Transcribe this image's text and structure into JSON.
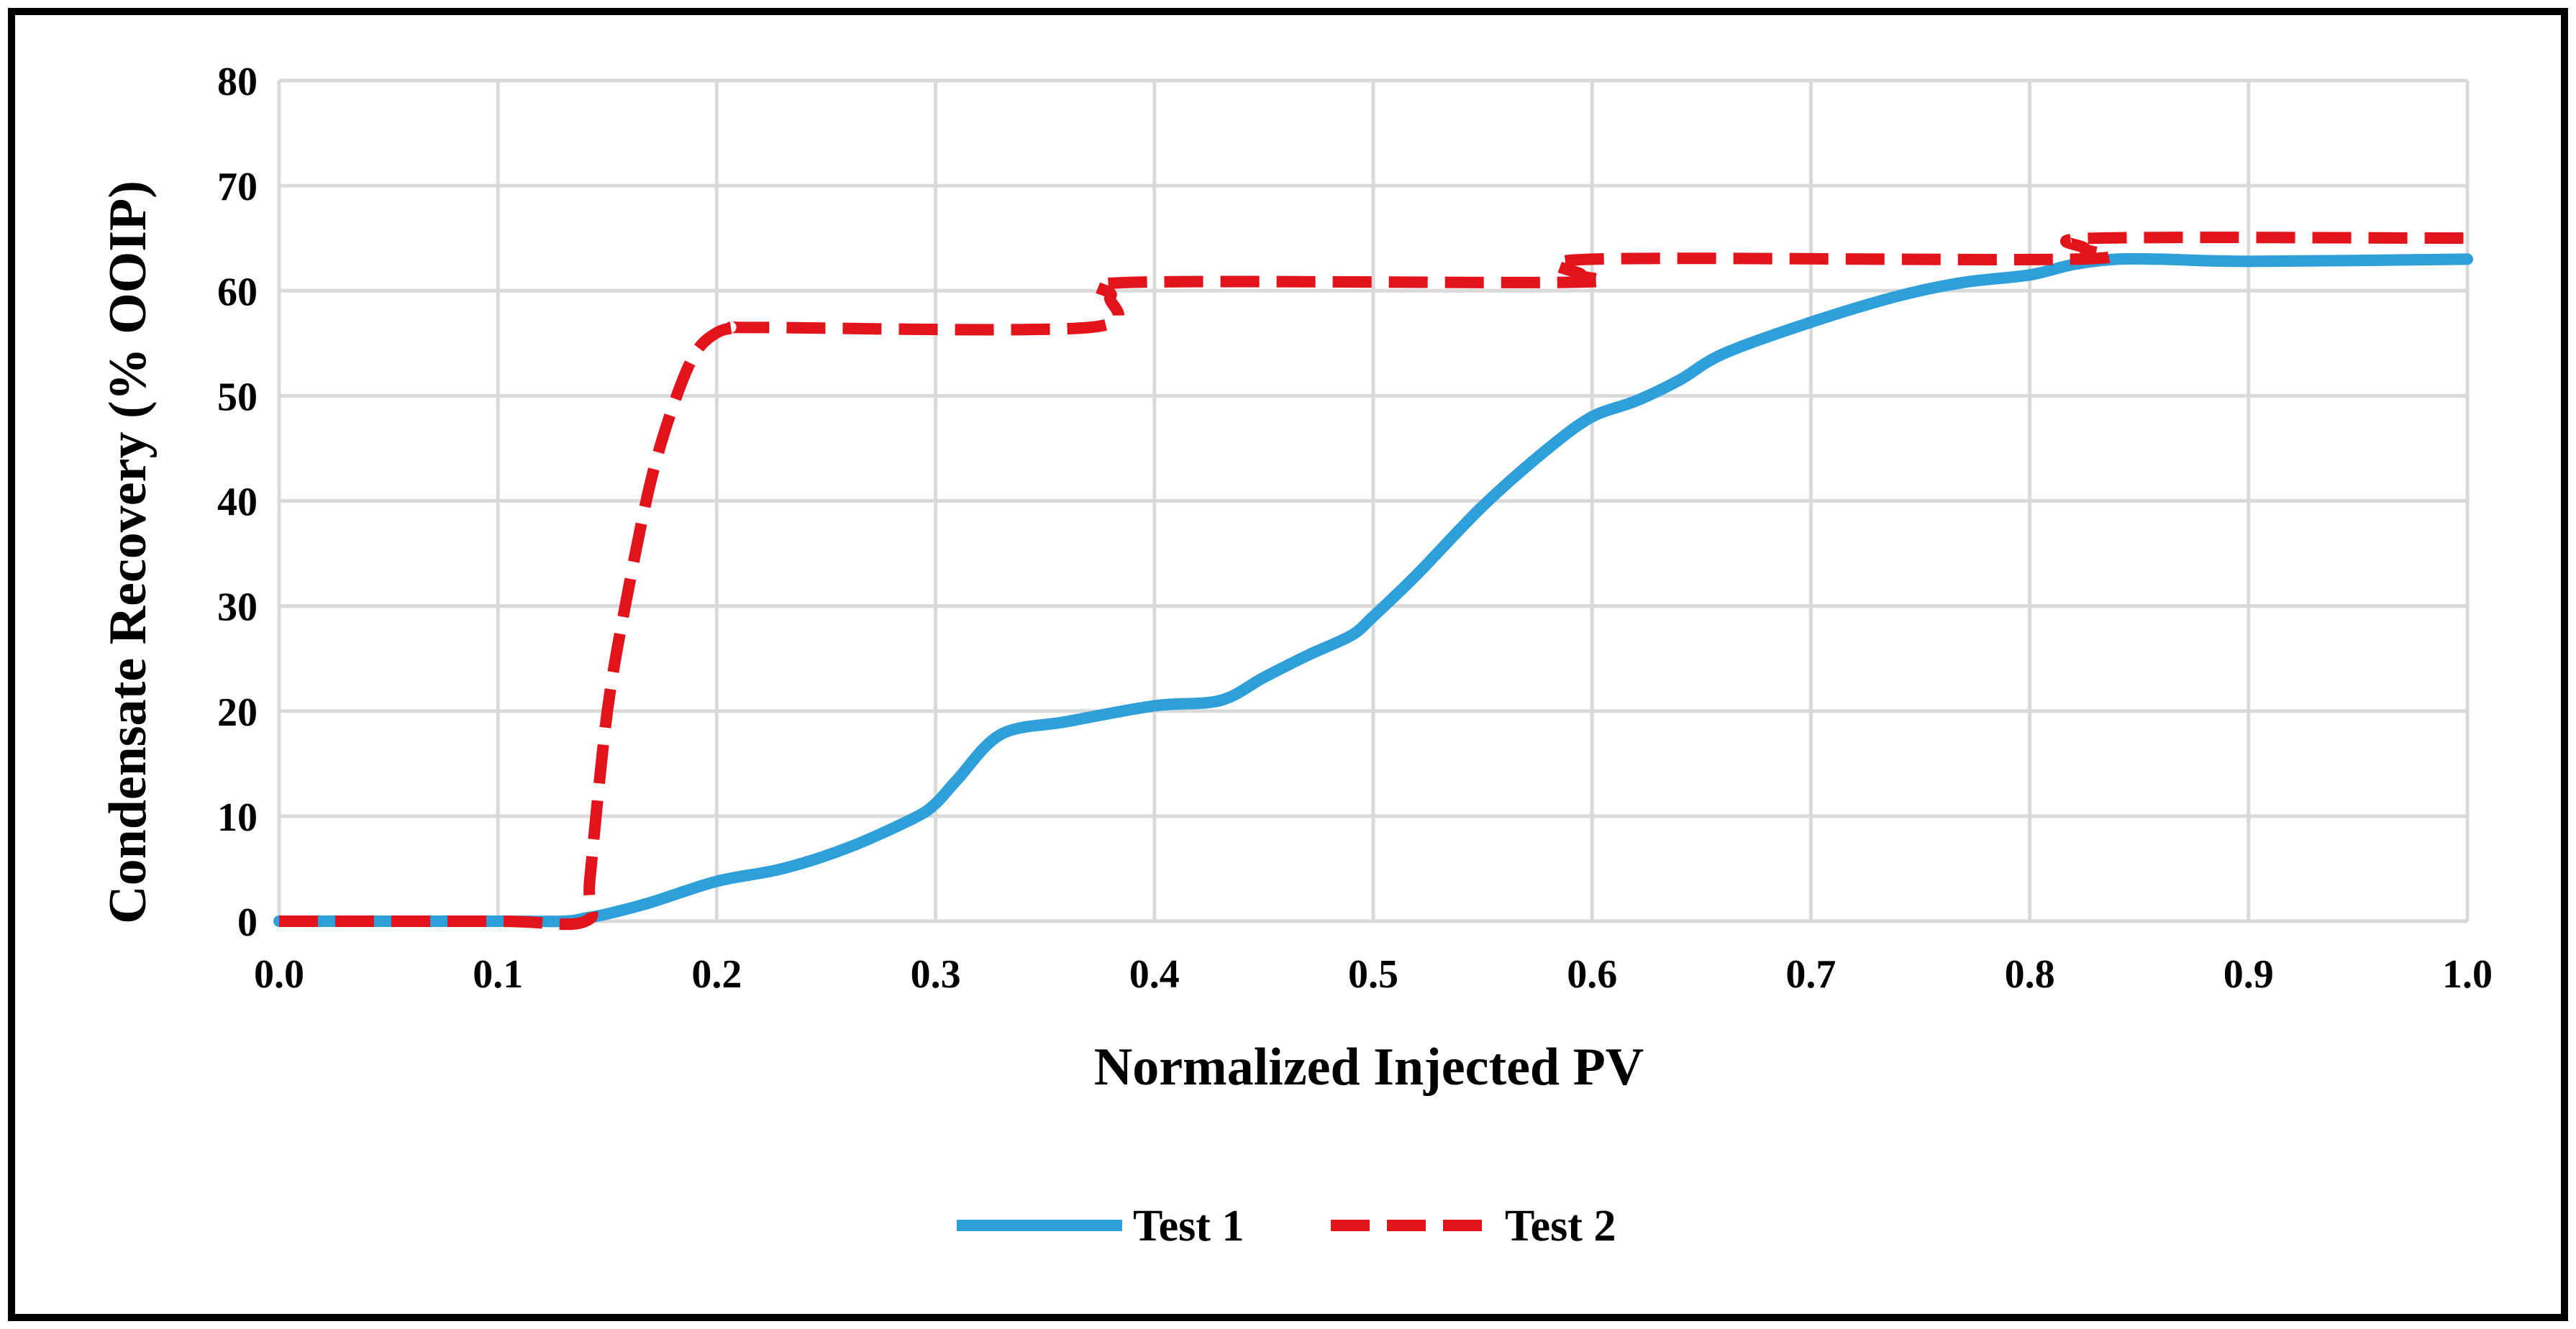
{
  "chart_data": {
    "type": "line",
    "title": "",
    "xlabel": "Normalized Injected PV",
    "ylabel": "Condensate Recovery (% OOIP)",
    "xlim": [
      0.0,
      1.0
    ],
    "ylim": [
      0,
      80
    ],
    "xticks": [
      0.0,
      0.1,
      0.2,
      0.3,
      0.4,
      0.5,
      0.6,
      0.7,
      0.8,
      0.9,
      1.0
    ],
    "xtick_labels": [
      "0.0",
      "0.1",
      "0.2",
      "0.3",
      "0.4",
      "0.5",
      "0.6",
      "0.7",
      "0.8",
      "0.9",
      "1.0"
    ],
    "yticks": [
      0,
      10,
      20,
      30,
      40,
      50,
      60,
      70,
      80
    ],
    "ytick_labels": [
      "0",
      "10",
      "20",
      "30",
      "40",
      "50",
      "60",
      "70",
      "80"
    ],
    "grid": true,
    "legend_position": "bottom-center",
    "series": [
      {
        "name": "Test 1",
        "color": "#2E9FD9",
        "style": "solid",
        "x": [
          0.0,
          0.1,
          0.13,
          0.14,
          0.15,
          0.17,
          0.2,
          0.23,
          0.26,
          0.29,
          0.3,
          0.31,
          0.33,
          0.36,
          0.4,
          0.43,
          0.45,
          0.47,
          0.49,
          0.5,
          0.52,
          0.55,
          0.58,
          0.6,
          0.62,
          0.64,
          0.66,
          0.7,
          0.74,
          0.77,
          0.8,
          0.82,
          0.84,
          0.86,
          0.9,
          1.0
        ],
        "y": [
          0,
          0,
          0,
          0.3,
          0.7,
          1.8,
          3.8,
          5.0,
          7.0,
          9.8,
          11.2,
          13.5,
          17.8,
          19.0,
          20.5,
          21.0,
          23.2,
          25.3,
          27.2,
          29.0,
          33.0,
          39.5,
          45.0,
          48.0,
          49.5,
          51.5,
          54.0,
          57.0,
          59.5,
          60.8,
          61.5,
          62.5,
          63.0,
          63.0,
          62.8,
          63.0
        ]
      },
      {
        "name": "Test 2",
        "color": "#E3131B",
        "style": "dashed",
        "x": [
          0.0,
          0.1,
          0.14,
          0.142,
          0.15,
          0.16,
          0.17,
          0.18,
          0.19,
          0.2,
          0.21,
          0.22,
          0.37,
          0.38,
          0.39,
          0.59,
          0.595,
          0.6,
          0.82,
          0.825,
          0.83,
          1.0
        ],
        "y": [
          0,
          0,
          0,
          4.0,
          20.0,
          32.0,
          42.0,
          49.0,
          54.0,
          56.0,
          56.5,
          56.5,
          56.5,
          59.5,
          60.8,
          60.8,
          61.5,
          63.0,
          63.0,
          64.0,
          65.0,
          65.0
        ]
      }
    ]
  }
}
